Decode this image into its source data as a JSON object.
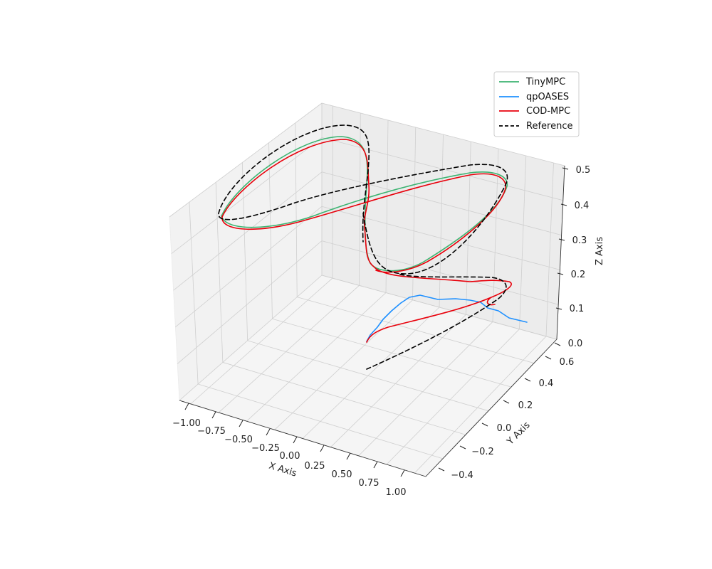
{
  "chart_data": {
    "type": "line",
    "projection": "3d",
    "title": "",
    "xlabel": "X Axis",
    "ylabel": "Y Axis",
    "zlabel": "Z Axis",
    "xlim": [
      -1.1,
      1.1
    ],
    "ylim": [
      -0.55,
      0.6
    ],
    "zlim": [
      0,
      0.5
    ],
    "xticks": [
      -1.0,
      -0.75,
      -0.5,
      -0.25,
      0.0,
      0.25,
      0.5,
      0.75,
      1.0
    ],
    "xtick_labels": [
      "−1.00",
      "−0.75",
      "−0.50",
      "−0.25",
      "0.00",
      "0.25",
      "0.50",
      "0.75",
      "1.00"
    ],
    "yticks": [
      -0.4,
      -0.2,
      0.0,
      0.2,
      0.4,
      0.6
    ],
    "ytick_labels": [
      "−0.4",
      "−0.2",
      "0.0",
      "0.2",
      "0.4",
      "0.6"
    ],
    "zticks": [
      0.0,
      0.1,
      0.2,
      0.3,
      0.4,
      0.5
    ],
    "ztick_labels": [
      "0.0",
      "0.1",
      "0.2",
      "0.3",
      "0.4",
      "0.5"
    ],
    "grid": true,
    "legend_position": "top-right",
    "series": [
      {
        "name": "TinyMPC",
        "color": "#3cb371",
        "style": "solid",
        "description": "lemniscate figure-eight loop at z≈0.4 following the reference with a slight downward offset",
        "points": [
          [
            -0.55,
            -0.12,
            0.0
          ],
          [
            -0.45,
            -0.1,
            0.08
          ],
          [
            -0.3,
            -0.05,
            0.14
          ],
          [
            -0.1,
            0.02,
            0.19
          ],
          [
            0.1,
            0.05,
            0.2
          ],
          [
            0.2,
            0.08,
            0.22
          ],
          [
            0.05,
            0.02,
            0.3
          ],
          [
            -0.02,
            0.0,
            0.39
          ],
          [
            0.3,
            0.1,
            0.4
          ],
          [
            0.6,
            0.15,
            0.4
          ],
          [
            0.85,
            0.12,
            0.4
          ],
          [
            0.95,
            0.02,
            0.4
          ],
          [
            0.85,
            -0.12,
            0.4
          ],
          [
            0.55,
            -0.2,
            0.4
          ],
          [
            0.25,
            -0.15,
            0.4
          ],
          [
            -0.05,
            0.0,
            0.4
          ],
          [
            -0.35,
            0.15,
            0.4
          ],
          [
            -0.7,
            0.2,
            0.4
          ],
          [
            -0.95,
            0.1,
            0.4
          ],
          [
            -0.95,
            -0.05,
            0.4
          ],
          [
            -0.7,
            -0.18,
            0.4
          ],
          [
            -0.35,
            -0.15,
            0.4
          ],
          [
            -0.05,
            0.0,
            0.4
          ]
        ]
      },
      {
        "name": "qpOASES",
        "color": "#1e90ff",
        "style": "solid",
        "description": "short trajectory near the ground that does not complete the loop",
        "points": [
          [
            -0.55,
            -0.12,
            0.0
          ],
          [
            -0.45,
            -0.05,
            0.05
          ],
          [
            -0.35,
            0.05,
            0.09
          ],
          [
            -0.2,
            0.15,
            0.12
          ],
          [
            0.0,
            0.25,
            0.12
          ],
          [
            0.25,
            0.3,
            0.1
          ],
          [
            0.45,
            0.32,
            0.08
          ],
          [
            0.6,
            0.3,
            0.07
          ],
          [
            0.75,
            0.25,
            0.07
          ],
          [
            0.9,
            0.12,
            0.07
          ],
          [
            1.0,
            0.0,
            0.06
          ]
        ]
      },
      {
        "name": "COD-MPC",
        "color": "#e8000b",
        "style": "solid",
        "description": "climbs from start to the lemniscate loop at z≈0.4, tracking slightly below the reference",
        "points": [
          [
            -0.55,
            -0.12,
            0.0
          ],
          [
            -0.3,
            -0.1,
            0.04
          ],
          [
            0.0,
            -0.05,
            0.07
          ],
          [
            0.3,
            0.05,
            0.1
          ],
          [
            0.55,
            0.15,
            0.12
          ],
          [
            0.6,
            0.22,
            0.15
          ],
          [
            0.45,
            0.25,
            0.16
          ],
          [
            0.2,
            0.2,
            0.17
          ],
          [
            0.0,
            0.12,
            0.18
          ],
          [
            -0.1,
            0.05,
            0.22
          ],
          [
            -0.05,
            0.02,
            0.3
          ],
          [
            -0.02,
            0.0,
            0.39
          ],
          [
            0.3,
            0.1,
            0.4
          ],
          [
            0.6,
            0.15,
            0.4
          ],
          [
            0.85,
            0.12,
            0.4
          ],
          [
            0.95,
            0.02,
            0.4
          ],
          [
            0.85,
            -0.12,
            0.4
          ],
          [
            0.55,
            -0.2,
            0.4
          ],
          [
            0.25,
            -0.15,
            0.4
          ],
          [
            -0.05,
            0.0,
            0.4
          ],
          [
            -0.35,
            0.15,
            0.4
          ],
          [
            -0.7,
            0.2,
            0.4
          ],
          [
            -0.95,
            0.1,
            0.4
          ],
          [
            -0.95,
            -0.05,
            0.4
          ],
          [
            -0.7,
            -0.18,
            0.4
          ],
          [
            -0.35,
            -0.15,
            0.4
          ],
          [
            -0.05,
            0.0,
            0.4
          ]
        ]
      },
      {
        "name": "Reference",
        "color": "#000000",
        "style": "dashed",
        "description": "dashed climb from the start point, then the figure-eight reference loop at z=0.4",
        "points": [
          [
            -0.5,
            -0.38,
            0.0
          ],
          [
            -0.2,
            -0.2,
            0.05
          ],
          [
            0.15,
            0.05,
            0.1
          ],
          [
            0.4,
            0.22,
            0.15
          ],
          [
            0.5,
            0.3,
            0.18
          ],
          [
            0.3,
            0.28,
            0.2
          ],
          [
            0.0,
            0.2,
            0.2
          ],
          [
            -0.05,
            0.08,
            0.25
          ],
          [
            0.0,
            0.0,
            0.32
          ],
          [
            0.0,
            0.0,
            0.4
          ],
          [
            0.3,
            0.1,
            0.4
          ],
          [
            0.6,
            0.15,
            0.4
          ],
          [
            0.85,
            0.12,
            0.4
          ],
          [
            0.95,
            0.02,
            0.4
          ],
          [
            0.85,
            -0.12,
            0.4
          ],
          [
            0.55,
            -0.2,
            0.4
          ],
          [
            0.25,
            -0.15,
            0.4
          ],
          [
            0.0,
            0.0,
            0.4
          ],
          [
            -0.35,
            0.15,
            0.4
          ],
          [
            -0.7,
            0.2,
            0.4
          ],
          [
            -0.95,
            0.1,
            0.4
          ],
          [
            -0.95,
            -0.05,
            0.4
          ],
          [
            -0.7,
            -0.18,
            0.4
          ],
          [
            -0.35,
            -0.15,
            0.4
          ],
          [
            0.0,
            0.0,
            0.4
          ]
        ]
      }
    ]
  }
}
